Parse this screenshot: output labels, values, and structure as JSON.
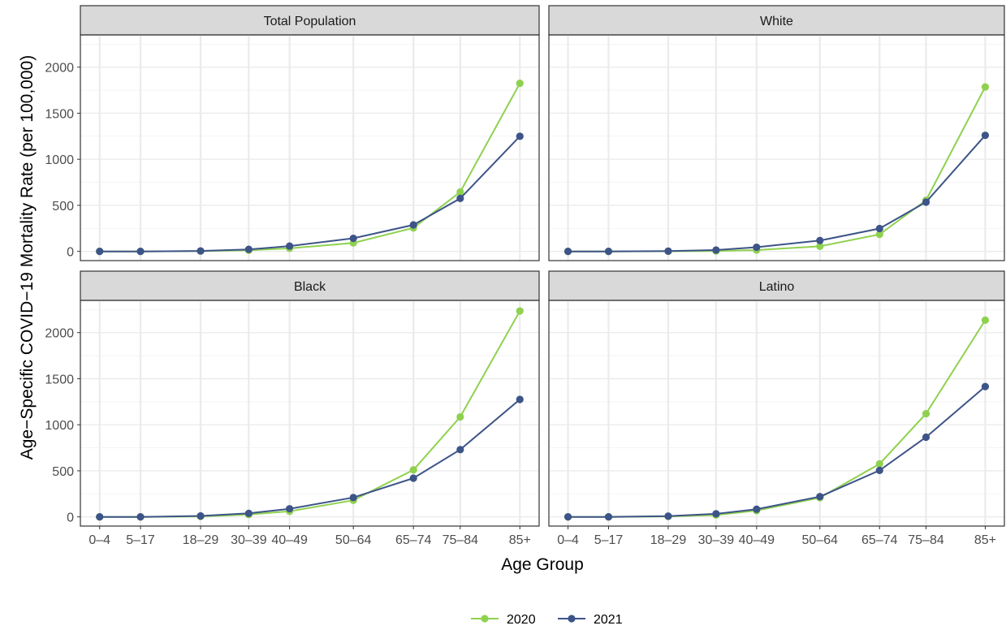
{
  "chart_data": {
    "type": "line",
    "ylabel": "Age−Specific COVID−19 Mortality Rate (per 100,000)",
    "xlabel": "Age Group",
    "categories": [
      "0–4",
      "5–17",
      "18–29",
      "30–39",
      "40–49",
      "50–64",
      "65–74",
      "75–84",
      "85+"
    ],
    "ylim": [
      -100,
      2350
    ],
    "yticks": [
      0,
      500,
      1000,
      1500,
      2000
    ],
    "ytick_labels": [
      "0",
      "500",
      "1000",
      "1500",
      "2000"
    ],
    "grid": true,
    "legend_position": "bottom",
    "colors": {
      "2020": "#8fd14f",
      "2021": "#3d5488"
    },
    "legend": [
      {
        "name": "2020",
        "color": "#8fd14f"
      },
      {
        "name": "2021",
        "color": "#3d5488"
      }
    ],
    "panels": [
      {
        "title": "Total Population",
        "series": [
          {
            "name": "2020",
            "values": [
              0,
              0,
              3,
              12,
              33,
              92,
              255,
              645,
              1825
            ]
          },
          {
            "name": "2021",
            "values": [
              0,
              0,
              5,
              22,
              58,
              142,
              288,
              575,
              1250
            ]
          }
        ]
      },
      {
        "title": "White",
        "series": [
          {
            "name": "2020",
            "values": [
              0,
              0,
              1,
              5,
              15,
              55,
              185,
              555,
              1785
            ]
          },
          {
            "name": "2021",
            "values": [
              0,
              0,
              3,
              15,
              45,
              118,
              248,
              535,
              1260
            ]
          }
        ]
      },
      {
        "title": "Black",
        "series": [
          {
            "name": "2020",
            "values": [
              0,
              0,
              5,
              25,
              60,
              180,
              510,
              1085,
              2235
            ]
          },
          {
            "name": "2021",
            "values": [
              0,
              0,
              10,
              38,
              88,
              210,
              420,
              730,
              1275
            ]
          }
        ]
      },
      {
        "title": "Latino",
        "series": [
          {
            "name": "2020",
            "values": [
              0,
              0,
              5,
              20,
              68,
              208,
              575,
              1120,
              2135
            ]
          },
          {
            "name": "2021",
            "values": [
              0,
              0,
              8,
              33,
              83,
              220,
              505,
              865,
              1415
            ]
          }
        ]
      }
    ]
  }
}
